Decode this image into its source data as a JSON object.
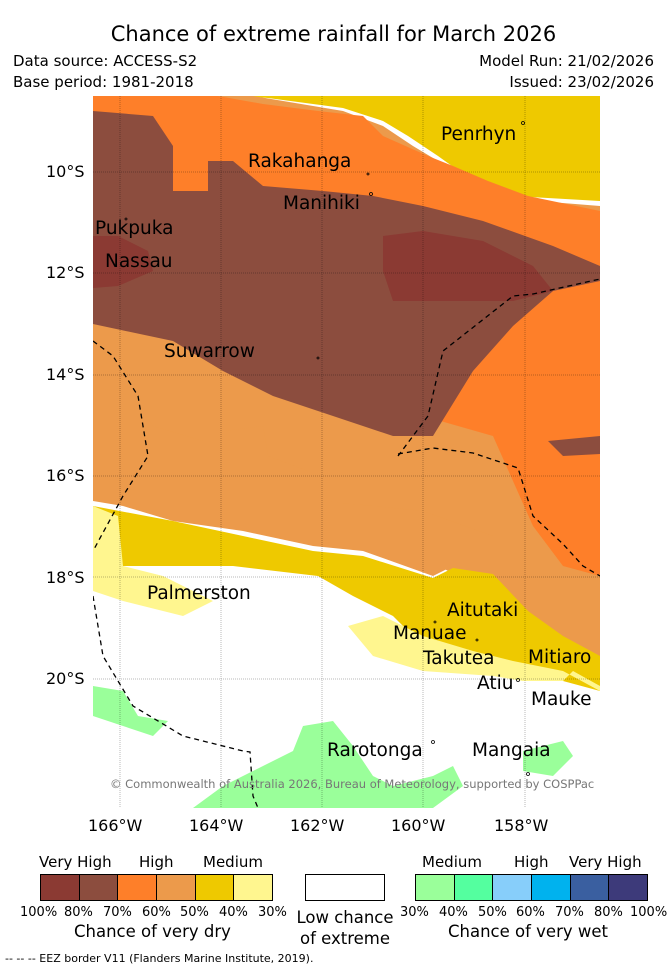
{
  "title": "Chance of extreme rainfall for March 2026",
  "meta": {
    "data_source": "Data source: ACCESS-S2",
    "base_period": "Base period: 1981-2018",
    "model_run": "Model Run: 21/02/2026",
    "issued": "Issued: 23/02/2026"
  },
  "map": {
    "lat_labels": [
      "10°S",
      "12°S",
      "14°S",
      "16°S",
      "18°S",
      "20°S"
    ],
    "lon_labels": [
      "166°W",
      "164°W",
      "162°W",
      "160°W",
      "158°W"
    ],
    "islands": {
      "penrhyn": "Penrhyn",
      "rakahanga": "Rakahanga",
      "manihiki": "Manihiki",
      "pukapuka": "Pukpuka",
      "nassau": "Nassau",
      "suwarrow": "Suwarrow",
      "palmerston": "Palmerston",
      "aitutaki": "Aitutaki",
      "manuae": "Manuae",
      "takutea": "Takutea",
      "mitiaro": "Mitiaro",
      "atiu": "Atiu",
      "mauke": "Mauke",
      "rarotonga": "Rarotonga",
      "mangaia": "Mangaia"
    },
    "copyright": "© Commonwealth of Australia 2026, Bureau of Meteorology, supported by COSPPac",
    "colors": {
      "dry_very_high_dark": "#8b3a33",
      "dry_very_high": "#8c4d3e",
      "dry_high": "#fe7f29",
      "dry_high_light": "#ec9a4b",
      "dry_medium": "#eec900",
      "dry_medium_light": "#fff68f",
      "wet_medium": "#9aff9a",
      "wet_medium2": "#54ff9f",
      "wet_high": "#87cefa",
      "wet_high2": "#00b2ee",
      "wet_very_high": "#3a5fa0",
      "wet_very_high2": "#3d3a7a"
    }
  },
  "legend": {
    "dry": {
      "headers": {
        "very_high": "Very High",
        "high": "High",
        "medium": "Medium"
      },
      "ticks": [
        "100%",
        "80%",
        "70%",
        "60%",
        "50%",
        "40%",
        "30%"
      ],
      "title": "Chance of very dry"
    },
    "low": {
      "line1": "Low chance",
      "line2": "of extreme"
    },
    "wet": {
      "headers": {
        "medium": "Medium",
        "high": "High",
        "very_high": "Very High"
      },
      "ticks": [
        "30%",
        "40%",
        "50%",
        "60%",
        "70%",
        "80%",
        "100%"
      ],
      "title": "Chance of very wet"
    }
  },
  "eez_note": "-- -- -- EEZ border V11 (Flanders Marine Institute, 2019)."
}
